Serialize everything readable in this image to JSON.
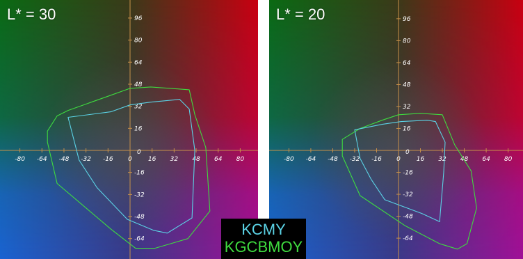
{
  "legend": {
    "kcmy_label": "KCMY",
    "kgcbmoy_label": "KGCBMOY",
    "kcmy_color": "#5bd3e6",
    "kgcbmoy_color": "#3fdc3f"
  },
  "colors": {
    "axis": "#c8914a",
    "green_corner": "#0a6a12",
    "red_corner": "#c80010",
    "blue_corner": "#1a63d2",
    "magenta_corner": "#a01098"
  },
  "chart_data": [
    {
      "type": "scatter",
      "title": "L* = 30",
      "xlim": [
        -100,
        100
      ],
      "ylim": [
        -78,
        110
      ],
      "x_ticks": [
        -80,
        -64,
        -48,
        -32,
        -16,
        0,
        16,
        32,
        48,
        64,
        80
      ],
      "y_ticks": [
        96,
        80,
        64,
        48,
        32,
        16,
        0,
        -16,
        -32,
        -48,
        -64
      ],
      "x_tick_labels": [
        "-80",
        "-64",
        "-48",
        "-32",
        "-16",
        "0",
        "16",
        "32",
        "48",
        "64",
        "80"
      ],
      "y_tick_labels": [
        "96",
        "80",
        "64",
        "48",
        "32",
        "16",
        "0",
        "-16",
        "-32",
        "-48",
        "-64"
      ],
      "series": [
        {
          "name": "KGCBMOY",
          "color": "#3fdc3f",
          "closed": true,
          "points": [
            [
              -53,
              25
            ],
            [
              -45,
              29
            ],
            [
              -14,
              40
            ],
            [
              0,
              45
            ],
            [
              15,
              46
            ],
            [
              43,
              44
            ],
            [
              47,
              26
            ],
            [
              55,
              2
            ],
            [
              58,
              -44
            ],
            [
              42,
              -64
            ],
            [
              18,
              -71
            ],
            [
              4,
              -71
            ],
            [
              -14,
              -57
            ],
            [
              -53,
              -24
            ],
            [
              -60,
              6
            ],
            [
              -60,
              14
            ]
          ]
        },
        {
          "name": "KCMY",
          "color": "#5bd3e6",
          "closed": true,
          "points": [
            [
              -45,
              24
            ],
            [
              -14,
              28
            ],
            [
              0,
              33
            ],
            [
              15,
              35
            ],
            [
              36,
              37
            ],
            [
              43,
              30
            ],
            [
              47,
              0
            ],
            [
              45,
              -49
            ],
            [
              27,
              -60
            ],
            [
              17,
              -58
            ],
            [
              -2,
              -50
            ],
            [
              -24,
              -27
            ],
            [
              -37,
              -7
            ]
          ]
        }
      ]
    },
    {
      "type": "scatter",
      "title": "L* = 20",
      "xlim": [
        -100,
        100
      ],
      "ylim": [
        -78,
        110
      ],
      "x_ticks": [
        -80,
        -64,
        -48,
        -32,
        -16,
        0,
        16,
        32,
        48,
        64,
        80
      ],
      "y_ticks": [
        96,
        80,
        64,
        48,
        32,
        16,
        0,
        -16,
        -32,
        -48,
        -64
      ],
      "x_tick_labels": [
        "-80",
        "-64",
        "-48",
        "-32",
        "-16",
        "0",
        "16",
        "32",
        "48",
        "64",
        "80"
      ],
      "y_tick_labels": [
        "96",
        "80",
        "64",
        "48",
        "32",
        "16",
        "0",
        "-16",
        "-32",
        "-48",
        "-64"
      ],
      "series": [
        {
          "name": "KGCBMOY",
          "color": "#3fdc3f",
          "closed": true,
          "points": [
            [
              -41,
              8
            ],
            [
              -28,
              16
            ],
            [
              -12,
              22
            ],
            [
              0,
              26
            ],
            [
              16,
              27
            ],
            [
              32,
              26
            ],
            [
              41,
              4
            ],
            [
              53,
              -15
            ],
            [
              57,
              -42
            ],
            [
              50,
              -68
            ],
            [
              43,
              -72
            ],
            [
              30,
              -68
            ],
            [
              5,
              -55
            ],
            [
              -28,
              -33
            ],
            [
              -41,
              -4
            ]
          ]
        },
        {
          "name": "KCMY",
          "color": "#5bd3e6",
          "closed": true,
          "points": [
            [
              -32,
              15
            ],
            [
              -12,
              19
            ],
            [
              2,
              21
            ],
            [
              21,
              22
            ],
            [
              27,
              21
            ],
            [
              34,
              6
            ],
            [
              33,
              -16
            ],
            [
              30,
              -52
            ],
            [
              17,
              -46
            ],
            [
              -10,
              -36
            ],
            [
              -20,
              -21
            ],
            [
              -28,
              -6
            ]
          ]
        }
      ]
    }
  ]
}
